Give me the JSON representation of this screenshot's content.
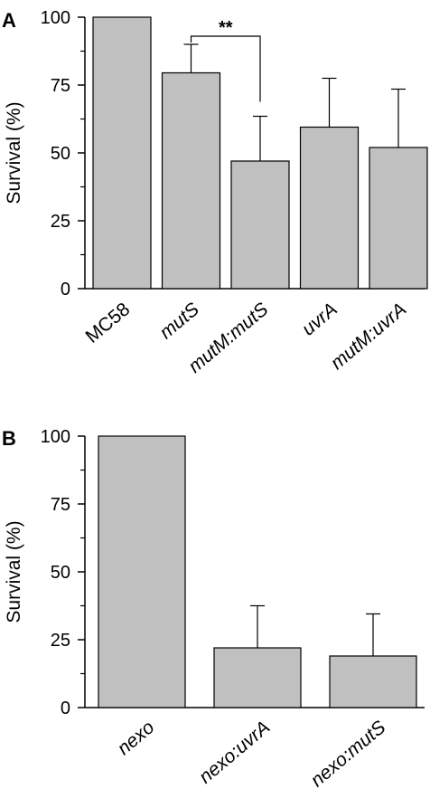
{
  "chart_data": [
    {
      "panel": "A",
      "type": "bar",
      "ylabel": "Survival (%)",
      "ylim": [
        0,
        100
      ],
      "yticks": [
        "0",
        "25",
        "50",
        "75",
        "100"
      ],
      "categories": [
        "MC58",
        "mutS",
        "mutM:mutS",
        "uvrA",
        "mutM:uvrA"
      ],
      "italic_categories": [
        false,
        true,
        true,
        true,
        true
      ],
      "values": [
        100,
        79.5,
        47,
        59.5,
        52
      ],
      "errors": [
        0,
        10.5,
        16.5,
        18,
        21.5
      ],
      "significance": {
        "from": "mutS",
        "to": "mutM:mutS",
        "label": "**"
      },
      "bar_color": "#c0c0c0"
    },
    {
      "panel": "B",
      "type": "bar",
      "ylabel": "Survival (%)",
      "ylim": [
        0,
        100
      ],
      "yticks": [
        "0",
        "25",
        "50",
        "75",
        "100"
      ],
      "categories": [
        "nexo",
        "nexo:uvrA",
        "nexo:mutS"
      ],
      "italic_categories": [
        true,
        true,
        true
      ],
      "values": [
        100,
        22,
        19
      ],
      "errors": [
        0,
        15.5,
        15.5
      ],
      "bar_color": "#c0c0c0"
    }
  ]
}
